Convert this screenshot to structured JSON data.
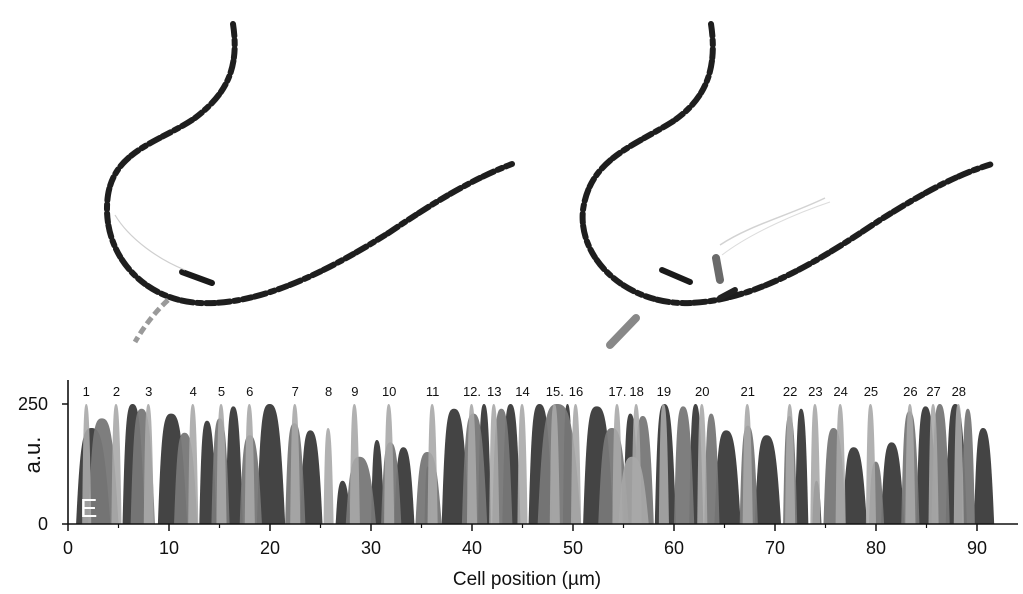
{
  "panel": {
    "letter": "E",
    "images": [
      {
        "name": "filament-micrograph-left",
        "description_kind": "microscopy"
      },
      {
        "name": "filament-micrograph-right",
        "description_kind": "microscopy"
      }
    ]
  },
  "chart_data": {
    "type": "area",
    "xlabel": "Cell position (µm)",
    "ylabel": "a.u.",
    "xlim": [
      0,
      94
    ],
    "ylim": [
      0,
      255
    ],
    "xticks": [
      0,
      10,
      20,
      30,
      40,
      50,
      60,
      70,
      80,
      90
    ],
    "yticks": [
      0,
      250
    ],
    "grid": false,
    "cell_numbers": [
      {
        "label": "1",
        "x": 1.8
      },
      {
        "label": "2",
        "x": 4.8
      },
      {
        "label": "3",
        "x": 8.0
      },
      {
        "label": "4",
        "x": 12.4
      },
      {
        "label": "5",
        "x": 15.2
      },
      {
        "label": "6",
        "x": 18.0
      },
      {
        "label": "7",
        "x": 22.5
      },
      {
        "label": "8",
        "x": 25.8
      },
      {
        "label": "9",
        "x": 28.4
      },
      {
        "label": "10",
        "x": 31.8
      },
      {
        "label": "11",
        "x": 36.1
      },
      {
        "label": "12.",
        "x": 40.0
      },
      {
        "label": "13",
        "x": 42.2
      },
      {
        "label": "14",
        "x": 45.0
      },
      {
        "label": "15.",
        "x": 48.2
      },
      {
        "label": "16",
        "x": 50.3
      },
      {
        "label": "17.",
        "x": 54.4
      },
      {
        "label": "18",
        "x": 56.3
      },
      {
        "label": "19",
        "x": 59.0
      },
      {
        "label": "20",
        "x": 62.8
      },
      {
        "label": "21",
        "x": 67.3
      },
      {
        "label": "22",
        "x": 71.5
      },
      {
        "label": "23",
        "x": 74.0
      },
      {
        "label": "24",
        "x": 76.5
      },
      {
        "label": "25",
        "x": 79.5
      },
      {
        "label": "26",
        "x": 83.4
      },
      {
        "label": "27",
        "x": 85.7
      },
      {
        "label": "28",
        "x": 88.2
      }
    ],
    "series": [
      {
        "color": "#3a3a3a",
        "peaks": [
          {
            "start": 0.8,
            "end": 4.2,
            "height": 200
          },
          {
            "start": 5.4,
            "end": 7.6,
            "height": 250
          },
          {
            "start": 8.9,
            "end": 11.8,
            "height": 230
          },
          {
            "start": 13.0,
            "end": 14.7,
            "height": 215
          },
          {
            "start": 15.6,
            "end": 17.3,
            "height": 245
          },
          {
            "start": 18.7,
            "end": 21.5,
            "height": 250
          },
          {
            "start": 23.0,
            "end": 25.2,
            "height": 195
          },
          {
            "start": 26.5,
            "end": 28.0,
            "height": 90
          },
          {
            "start": 30.0,
            "end": 31.3,
            "height": 175
          },
          {
            "start": 32.3,
            "end": 34.3,
            "height": 160
          },
          {
            "start": 35.3,
            "end": 36.0,
            "height": 120
          },
          {
            "start": 37.0,
            "end": 39.7,
            "height": 240
          },
          {
            "start": 40.6,
            "end": 41.9,
            "height": 250
          },
          {
            "start": 43.0,
            "end": 44.8,
            "height": 250
          },
          {
            "start": 45.6,
            "end": 48.0,
            "height": 250
          },
          {
            "start": 49.0,
            "end": 50.0,
            "height": 250
          },
          {
            "start": 51.0,
            "end": 54.0,
            "height": 245
          },
          {
            "start": 55.0,
            "end": 56.5,
            "height": 230
          },
          {
            "start": 58.1,
            "end": 60.2,
            "height": 250
          },
          {
            "start": 61.5,
            "end": 62.9,
            "height": 250
          },
          {
            "start": 64.0,
            "end": 66.6,
            "height": 195
          },
          {
            "start": 68.0,
            "end": 70.6,
            "height": 185
          },
          {
            "start": 72.0,
            "end": 73.3,
            "height": 240
          },
          {
            "start": 73.7,
            "end": 74.6,
            "height": 90
          },
          {
            "start": 76.7,
            "end": 79.1,
            "height": 160
          },
          {
            "start": 80.5,
            "end": 82.8,
            "height": 170
          },
          {
            "start": 84.0,
            "end": 86.0,
            "height": 245
          },
          {
            "start": 86.9,
            "end": 89.0,
            "height": 250
          },
          {
            "start": 89.7,
            "end": 91.7,
            "height": 200
          }
        ]
      },
      {
        "color": "#777777",
        "peaks": [
          {
            "start": 2.0,
            "end": 5.0,
            "height": 220
          },
          {
            "start": 6.2,
            "end": 8.6,
            "height": 240
          },
          {
            "start": 10.5,
            "end": 12.8,
            "height": 190
          },
          {
            "start": 14.2,
            "end": 16.0,
            "height": 220
          },
          {
            "start": 17.0,
            "end": 19.2,
            "height": 185
          },
          {
            "start": 21.5,
            "end": 23.5,
            "height": 210
          },
          {
            "start": 27.5,
            "end": 30.5,
            "height": 140
          },
          {
            "start": 31.0,
            "end": 33.0,
            "height": 170
          },
          {
            "start": 34.4,
            "end": 37.0,
            "height": 150
          },
          {
            "start": 39.0,
            "end": 41.5,
            "height": 230
          },
          {
            "start": 42.0,
            "end": 44.0,
            "height": 240
          },
          {
            "start": 46.5,
            "end": 50.8,
            "height": 250
          },
          {
            "start": 52.5,
            "end": 55.5,
            "height": 200
          },
          {
            "start": 56.0,
            "end": 58.0,
            "height": 225
          },
          {
            "start": 60.0,
            "end": 62.0,
            "height": 245
          },
          {
            "start": 63.0,
            "end": 64.5,
            "height": 230
          },
          {
            "start": 66.5,
            "end": 68.3,
            "height": 205
          },
          {
            "start": 70.8,
            "end": 72.2,
            "height": 225
          },
          {
            "start": 74.8,
            "end": 77.0,
            "height": 200
          },
          {
            "start": 79.3,
            "end": 80.8,
            "height": 130
          },
          {
            "start": 82.5,
            "end": 84.3,
            "height": 235
          },
          {
            "start": 85.5,
            "end": 87.3,
            "height": 250
          },
          {
            "start": 88.5,
            "end": 89.8,
            "height": 240
          }
        ]
      },
      {
        "color": "#a9a9a9",
        "peaks": [
          {
            "start": 1.4,
            "end": 2.3,
            "height": 250
          },
          {
            "start": 4.3,
            "end": 5.3,
            "height": 250
          },
          {
            "start": 7.5,
            "end": 8.5,
            "height": 250
          },
          {
            "start": 11.9,
            "end": 12.9,
            "height": 250
          },
          {
            "start": 14.7,
            "end": 15.7,
            "height": 250
          },
          {
            "start": 17.5,
            "end": 18.5,
            "height": 250
          },
          {
            "start": 22.0,
            "end": 23.0,
            "height": 250
          },
          {
            "start": 25.3,
            "end": 26.3,
            "height": 200
          },
          {
            "start": 27.9,
            "end": 28.9,
            "height": 250
          },
          {
            "start": 31.3,
            "end": 32.3,
            "height": 250
          },
          {
            "start": 35.6,
            "end": 36.6,
            "height": 250
          },
          {
            "start": 39.5,
            "end": 40.5,
            "height": 250
          },
          {
            "start": 41.7,
            "end": 42.7,
            "height": 250
          },
          {
            "start": 44.5,
            "end": 45.5,
            "height": 250
          },
          {
            "start": 47.7,
            "end": 48.7,
            "height": 250
          },
          {
            "start": 49.8,
            "end": 50.8,
            "height": 250
          },
          {
            "start": 53.9,
            "end": 54.9,
            "height": 250
          },
          {
            "start": 55.8,
            "end": 56.8,
            "height": 250
          },
          {
            "start": 58.5,
            "end": 59.5,
            "height": 250
          },
          {
            "start": 62.3,
            "end": 63.3,
            "height": 250
          },
          {
            "start": 66.8,
            "end": 67.8,
            "height": 250
          },
          {
            "start": 71.0,
            "end": 72.0,
            "height": 250
          },
          {
            "start": 73.5,
            "end": 74.5,
            "height": 250
          },
          {
            "start": 76.0,
            "end": 77.0,
            "height": 250
          },
          {
            "start": 79.0,
            "end": 80.0,
            "height": 250
          },
          {
            "start": 82.9,
            "end": 83.9,
            "height": 250
          },
          {
            "start": 85.2,
            "end": 86.2,
            "height": 250
          },
          {
            "start": 87.7,
            "end": 88.7,
            "height": 250
          },
          {
            "start": 54.5,
            "end": 57.5,
            "height": 140
          }
        ]
      }
    ]
  }
}
